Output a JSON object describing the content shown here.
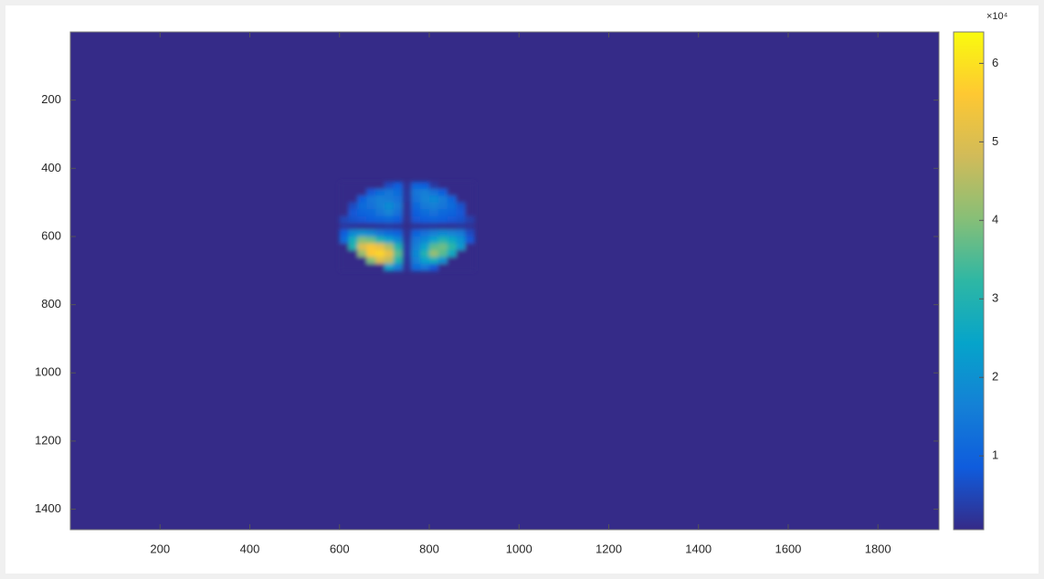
{
  "chart_data": {
    "type": "heatmap",
    "xlim": [
      0,
      1936
    ],
    "ylim": [
      0,
      1460
    ],
    "y_reversed": true,
    "xticks": [
      200,
      400,
      600,
      800,
      1000,
      1200,
      1400,
      1600,
      1800
    ],
    "yticks": [
      200,
      400,
      600,
      800,
      1000,
      1200,
      1400
    ],
    "background": 700,
    "cell_size": 20,
    "x": [
      610,
      630,
      650,
      670,
      690,
      710,
      730,
      750,
      770,
      790,
      810,
      830,
      850,
      870,
      890
    ],
    "y": [
      450,
      470,
      490,
      510,
      530,
      550,
      570,
      590,
      610,
      630,
      650,
      670,
      690
    ],
    "z": [
      [
        700,
        700,
        700,
        700,
        700,
        6000,
        9000,
        2000,
        10000,
        9000,
        3000,
        700,
        700,
        700,
        700
      ],
      [
        700,
        700,
        700,
        8000,
        12000,
        14000,
        12000,
        2500,
        14000,
        16000,
        13000,
        9000,
        700,
        700,
        700
      ],
      [
        700,
        700,
        9000,
        14000,
        16000,
        15000,
        13000,
        2500,
        13000,
        17000,
        18000,
        15000,
        10000,
        700,
        700
      ],
      [
        700,
        6000,
        12000,
        13000,
        16000,
        19000,
        15000,
        2000,
        11000,
        15000,
        16000,
        14000,
        12000,
        7000,
        700
      ],
      [
        700,
        8000,
        10000,
        11000,
        14000,
        17000,
        13000,
        2000,
        9000,
        12000,
        13000,
        11000,
        10000,
        8000,
        700
      ],
      [
        5000,
        7000,
        8000,
        9000,
        10000,
        11000,
        9000,
        1500,
        8000,
        9000,
        10000,
        9000,
        8000,
        7000,
        4000
      ],
      [
        3000,
        2500,
        2000,
        2000,
        2500,
        3000,
        2500,
        1000,
        2000,
        2500,
        2500,
        2000,
        2000,
        2500,
        2000
      ],
      [
        9000,
        18000,
        20000,
        18000,
        14000,
        12000,
        10000,
        2000,
        10000,
        13000,
        16000,
        18000,
        17000,
        15000,
        6000
      ],
      [
        12000,
        28000,
        40000,
        38000,
        30000,
        24000,
        18000,
        2500,
        14000,
        18000,
        24000,
        30000,
        26000,
        20000,
        8000
      ],
      [
        700,
        30000,
        50000,
        55000,
        52000,
        44000,
        30000,
        3000,
        16000,
        24000,
        36000,
        38000,
        32000,
        22000,
        700
      ],
      [
        700,
        700,
        42000,
        56000,
        58000,
        52000,
        36000,
        3000,
        18000,
        30000,
        42000,
        36000,
        26000,
        700,
        700
      ],
      [
        700,
        700,
        700,
        40000,
        50000,
        46000,
        30000,
        2500,
        16000,
        24000,
        28000,
        20000,
        700,
        700,
        700
      ],
      [
        700,
        700,
        700,
        700,
        700,
        24000,
        16000,
        2000,
        12000,
        14000,
        8000,
        700,
        700,
        700,
        700
      ]
    ],
    "clim": [
      600,
      64000
    ],
    "cticks": [
      {
        "value": 10000,
        "label": "1"
      },
      {
        "value": 20000,
        "label": "2"
      },
      {
        "value": 30000,
        "label": "3"
      },
      {
        "value": 40000,
        "label": "4"
      },
      {
        "value": 50000,
        "label": "5"
      },
      {
        "value": 60000,
        "label": "6"
      }
    ],
    "colorbar_multiplier": "×10⁴",
    "colormap": [
      "#352a87",
      "#0f5cdd",
      "#1481d6",
      "#06a4ca",
      "#2eb7a4",
      "#87bf77",
      "#d1bb59",
      "#fec832",
      "#f9fb0e"
    ]
  }
}
